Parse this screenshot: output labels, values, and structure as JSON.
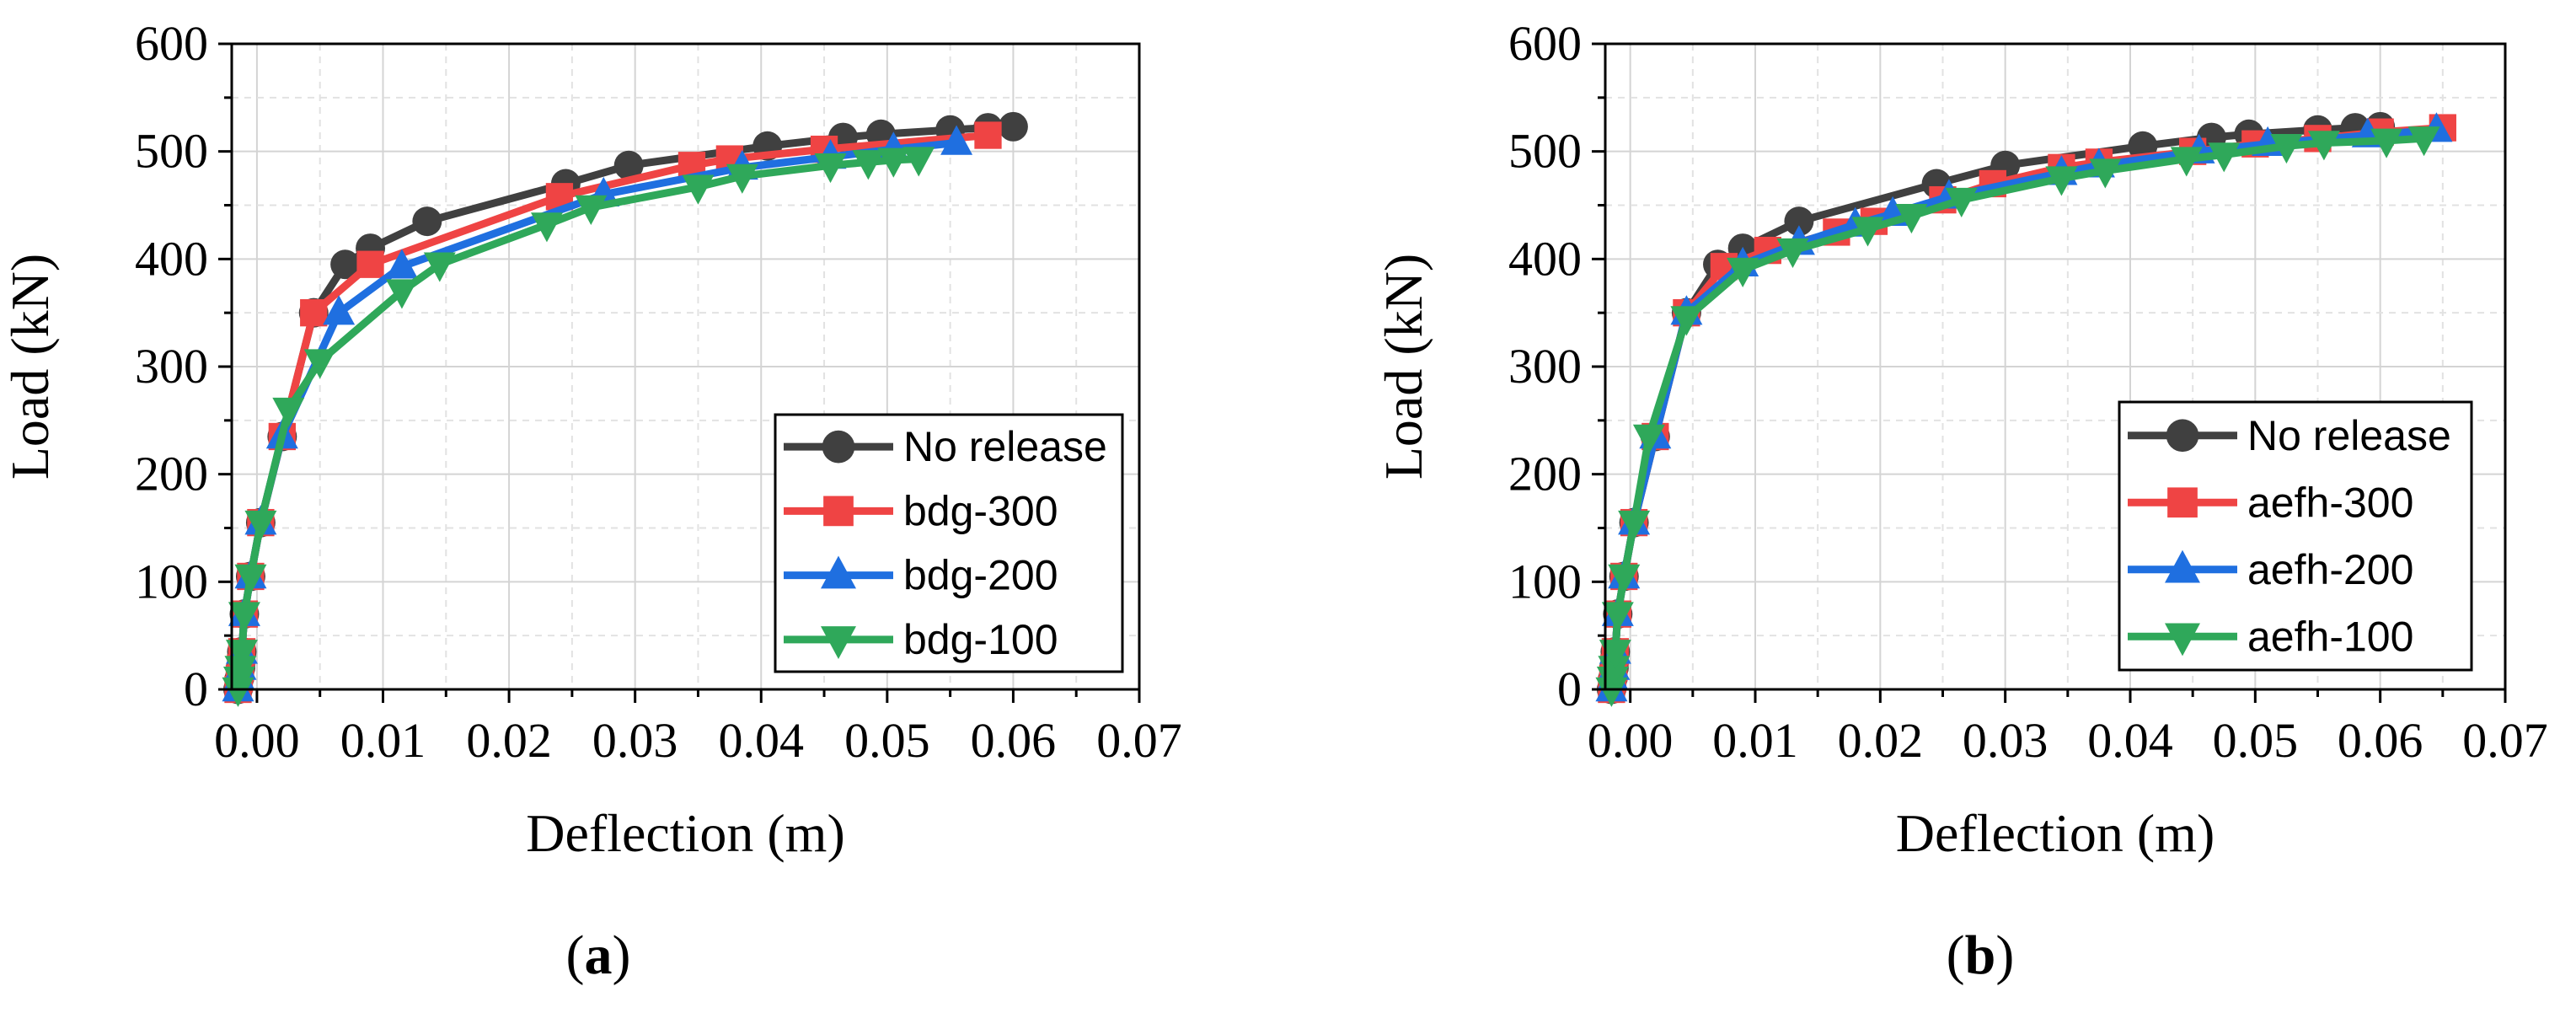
{
  "chart_data": [
    {
      "type": "line",
      "panel": "a",
      "panel_label": "a",
      "xlabel": "Deflection (m)",
      "ylabel": "Load (kN)",
      "xlim": [
        -0.002,
        0.07
      ],
      "ylim": [
        0,
        600
      ],
      "xticks": [
        0.0,
        0.01,
        0.02,
        0.03,
        0.04,
        0.05,
        0.06,
        0.07
      ],
      "xtick_labels": [
        "0.00",
        "0.01",
        "0.02",
        "0.03",
        "0.04",
        "0.05",
        "0.06",
        "0.07"
      ],
      "yticks": [
        0,
        100,
        200,
        300,
        400,
        500,
        600
      ],
      "ytick_labels": [
        "0",
        "100",
        "200",
        "300",
        "400",
        "500",
        "600"
      ],
      "grid": true,
      "legend_position": "lower-right",
      "series": [
        {
          "name": "No release",
          "color": "#404040",
          "marker": "circle",
          "x": [
            -0.0015,
            -0.0014,
            -0.0013,
            -0.0012,
            -0.001,
            -0.0005,
            0.0003,
            0.002,
            0.0045,
            0.007,
            0.009,
            0.0135,
            0.0245,
            0.0295,
            0.0405,
            0.0465,
            0.0495,
            0.055,
            0.058,
            0.06
          ],
          "y": [
            0,
            10,
            20,
            35,
            70,
            105,
            155,
            235,
            350,
            395,
            410,
            435,
            470,
            487,
            505,
            513,
            516,
            520,
            522,
            523
          ]
        },
        {
          "name": "bdg-300",
          "color": "#ef4444",
          "marker": "square",
          "x": [
            -0.0015,
            -0.0014,
            -0.0013,
            -0.0012,
            -0.001,
            -0.0005,
            0.0003,
            0.002,
            0.0045,
            0.009,
            0.024,
            0.0345,
            0.0375,
            0.045,
            0.058
          ],
          "y": [
            0,
            10,
            20,
            35,
            70,
            105,
            155,
            235,
            350,
            395,
            458,
            487,
            493,
            502,
            515
          ]
        },
        {
          "name": "bdg-200",
          "color": "#1f6fe0",
          "marker": "triangle-up",
          "x": [
            -0.0015,
            -0.0014,
            -0.0013,
            -0.0012,
            -0.001,
            -0.0005,
            0.0003,
            0.002,
            0.0065,
            0.0115,
            0.0275,
            0.0385,
            0.0455,
            0.0505,
            0.0555
          ],
          "y": [
            0,
            10,
            20,
            35,
            70,
            105,
            155,
            235,
            350,
            393,
            460,
            485,
            495,
            502,
            508
          ]
        },
        {
          "name": "bdg-100",
          "color": "#2fa85a",
          "marker": "triangle-down",
          "x": [
            -0.0015,
            -0.0014,
            -0.0013,
            -0.0012,
            -0.001,
            -0.0005,
            0.0003,
            0.0025,
            0.005,
            0.0115,
            0.0145,
            0.023,
            0.0265,
            0.035,
            0.0385,
            0.0455,
            0.0485,
            0.0505,
            0.0525
          ],
          "y": [
            0,
            10,
            20,
            35,
            70,
            105,
            155,
            260,
            305,
            370,
            395,
            432,
            448,
            467,
            477,
            487,
            490,
            492,
            493
          ]
        }
      ]
    },
    {
      "type": "line",
      "panel": "b",
      "panel_label": "b",
      "xlabel": "Deflection (m)",
      "ylabel": "Load (kN)",
      "xlim": [
        -0.002,
        0.07
      ],
      "ylim": [
        0,
        600
      ],
      "xticks": [
        0.0,
        0.01,
        0.02,
        0.03,
        0.04,
        0.05,
        0.06,
        0.07
      ],
      "xtick_labels": [
        "0.00",
        "0.01",
        "0.02",
        "0.03",
        "0.04",
        "0.05",
        "0.06",
        "0.07"
      ],
      "yticks": [
        0,
        100,
        200,
        300,
        400,
        500,
        600
      ],
      "ytick_labels": [
        "0",
        "100",
        "200",
        "300",
        "400",
        "500",
        "600"
      ],
      "grid": true,
      "legend_position": "lower-right",
      "series": [
        {
          "name": "No release",
          "color": "#404040",
          "marker": "circle",
          "x": [
            -0.0015,
            -0.0014,
            -0.0013,
            -0.0012,
            -0.001,
            -0.0005,
            0.0003,
            0.002,
            0.0045,
            0.007,
            0.009,
            0.0135,
            0.0245,
            0.03,
            0.041,
            0.0465,
            0.0495,
            0.055,
            0.058,
            0.06
          ],
          "y": [
            0,
            10,
            20,
            35,
            70,
            105,
            155,
            235,
            350,
            395,
            410,
            435,
            470,
            487,
            505,
            513,
            516,
            520,
            522,
            523
          ]
        },
        {
          "name": "aefh-300",
          "color": "#ef4444",
          "marker": "square",
          "x": [
            -0.0015,
            -0.0014,
            -0.0013,
            -0.0012,
            -0.001,
            -0.0005,
            0.0003,
            0.002,
            0.0045,
            0.0075,
            0.011,
            0.0165,
            0.0195,
            0.025,
            0.029,
            0.0345,
            0.0375,
            0.045,
            0.05,
            0.055,
            0.06,
            0.065
          ],
          "y": [
            0,
            10,
            20,
            35,
            70,
            105,
            155,
            235,
            350,
            393,
            408,
            425,
            435,
            455,
            470,
            485,
            490,
            500,
            507,
            512,
            518,
            522
          ]
        },
        {
          "name": "aefh-200",
          "color": "#1f6fe0",
          "marker": "triangle-up",
          "x": [
            -0.0015,
            -0.0014,
            -0.0013,
            -0.0012,
            -0.001,
            -0.0005,
            0.0003,
            0.002,
            0.0045,
            0.009,
            0.0135,
            0.018,
            0.021,
            0.0255,
            0.0345,
            0.0375,
            0.0455,
            0.051,
            0.059,
            0.0645
          ],
          "y": [
            0,
            10,
            20,
            35,
            70,
            105,
            155,
            235,
            350,
            395,
            415,
            432,
            442,
            458,
            480,
            487,
            500,
            507,
            515,
            520
          ]
        },
        {
          "name": "aefh-100",
          "color": "#2fa85a",
          "marker": "triangle-down",
          "x": [
            -0.0015,
            -0.0014,
            -0.0013,
            -0.0012,
            -0.001,
            -0.0005,
            0.0003,
            0.0015,
            0.0045,
            0.009,
            0.013,
            0.019,
            0.0225,
            0.0265,
            0.0345,
            0.038,
            0.0445,
            0.0475,
            0.0525,
            0.0555,
            0.0605,
            0.0635
          ],
          "y": [
            0,
            10,
            20,
            35,
            70,
            105,
            155,
            235,
            345,
            390,
            408,
            428,
            440,
            455,
            475,
            482,
            493,
            497,
            505,
            508,
            510,
            512
          ]
        }
      ]
    }
  ]
}
